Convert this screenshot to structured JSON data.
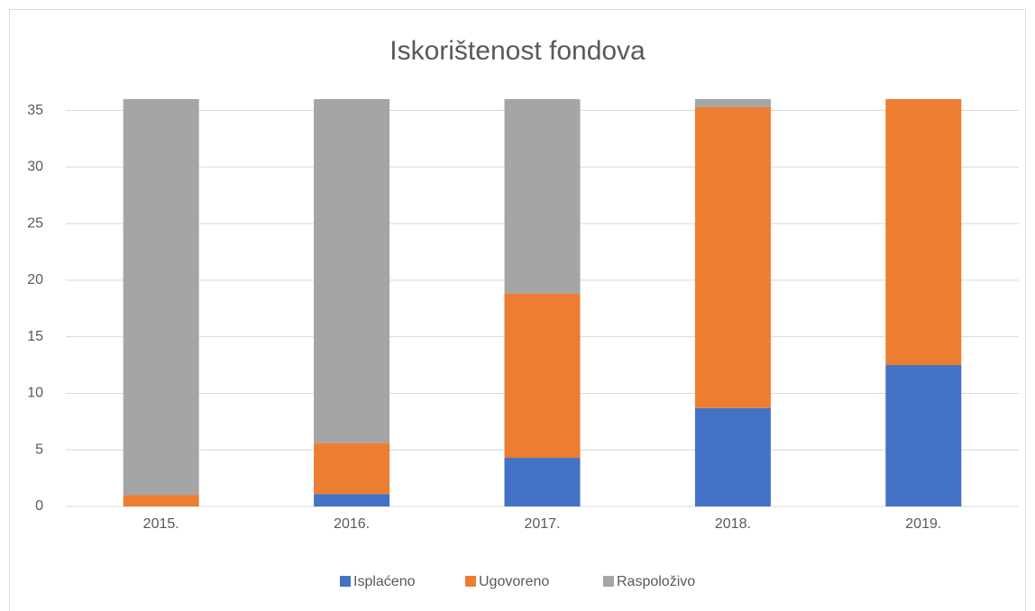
{
  "chart_data": {
    "type": "stacked_bar",
    "title": "Iskorištenost fondova",
    "categories": [
      "2015.",
      "2016.",
      "2017.",
      "2018.",
      "2019."
    ],
    "series": [
      {
        "name": "Isplaćeno",
        "color": "#4472c4",
        "values": [
          0,
          1.1,
          4.3,
          8.7,
          12.5
        ]
      },
      {
        "name": "Ugovoreno",
        "color": "#ed7d31",
        "values": [
          1,
          4.5,
          14.5,
          26.6,
          23.5
        ]
      },
      {
        "name": "Raspoloživo",
        "color": "#a5a5a5",
        "values": [
          35,
          30.4,
          17.2,
          0.7,
          0
        ]
      }
    ],
    "ylim": [
      0,
      36
    ],
    "yticks": [
      0,
      5,
      10,
      15,
      20,
      25,
      30,
      35
    ],
    "grid": true,
    "legend": "bottom"
  }
}
